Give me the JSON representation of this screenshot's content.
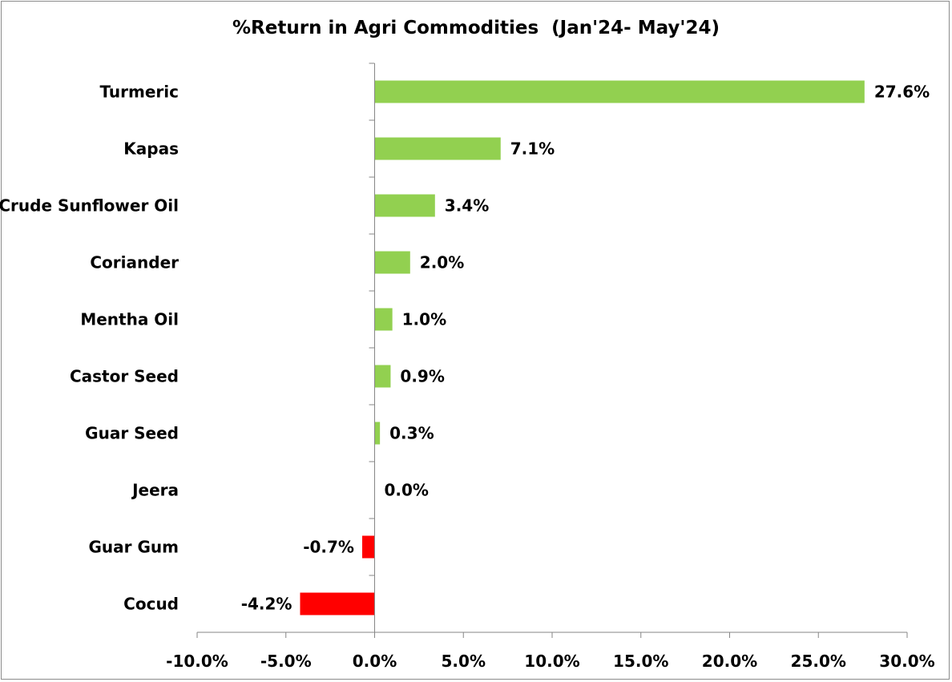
{
  "chart_data": {
    "type": "bar",
    "orientation": "horizontal",
    "title": "%Return in Agri Commodities  (Jan'24- May'24)",
    "xlabel": "",
    "ylabel": "",
    "xlim": [
      -10,
      30
    ],
    "x_ticks": [
      -10,
      -5,
      0,
      5,
      10,
      15,
      20,
      25,
      30
    ],
    "x_tick_labels": [
      "-10.0%",
      "-5.0%",
      "0.0%",
      "5.0%",
      "10.0%",
      "15.0%",
      "20.0%",
      "25.0%",
      "30.0%"
    ],
    "grid": false,
    "legend": "none",
    "categories": [
      "Turmeric",
      "Kapas",
      "Crude Sunflower Oil",
      "Coriander",
      "Mentha Oil",
      "Castor Seed",
      "Guar Seed",
      "Jeera",
      "Guar Gum",
      "Cocud"
    ],
    "values": [
      27.6,
      7.1,
      3.4,
      2.0,
      1.0,
      0.9,
      0.3,
      0.0,
      -0.7,
      -4.2
    ],
    "data_labels": [
      "27.6%",
      "7.1%",
      "3.4%",
      "2.0%",
      "1.0%",
      "0.9%",
      "0.3%",
      "0.0%",
      "-0.7%",
      "-4.2%"
    ],
    "colors": {
      "positive": "#92d050",
      "negative": "#ff0000",
      "axis": "#868686"
    }
  }
}
